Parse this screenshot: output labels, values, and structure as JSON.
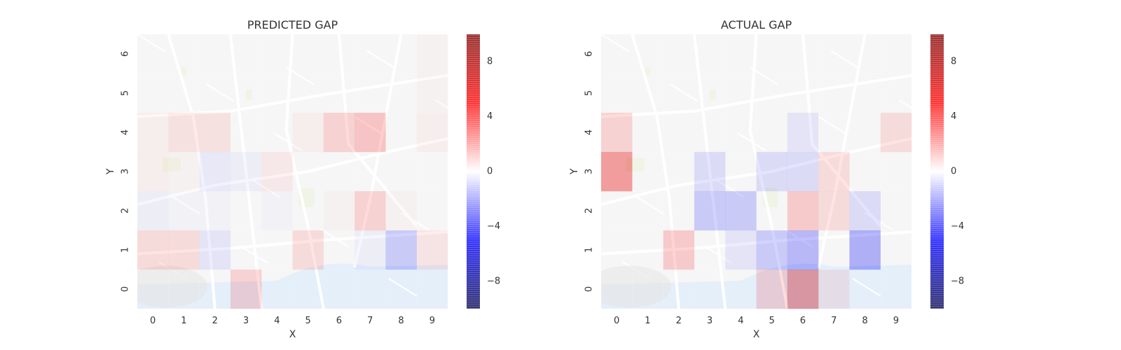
{
  "chart_data": [
    {
      "type": "heatmap",
      "title": "PREDICTED GAP",
      "xlabel": "X",
      "ylabel": "Y",
      "x_ticks": [
        "0",
        "1",
        "2",
        "3",
        "4",
        "5",
        "6",
        "7",
        "8",
        "9"
      ],
      "y_ticks": [
        "0",
        "1",
        "2",
        "3",
        "4",
        "5",
        "6"
      ],
      "colorbar": {
        "colormap": "seismic",
        "range": [
          -10,
          10
        ],
        "ticks": [
          -8,
          -4,
          0,
          4,
          8
        ],
        "tick_labels": [
          "−8",
          "−4",
          "0",
          "4",
          "8"
        ]
      },
      "background": "map",
      "grid": false,
      "values": [
        [
          0.0,
          0.0,
          0.0,
          2.0,
          0.0,
          0.0,
          0.0,
          0.0,
          0.0,
          0.0
        ],
        [
          1.5,
          1.5,
          -1.0,
          0.0,
          0.0,
          1.5,
          0.0,
          -0.5,
          -2.5,
          1.0
        ],
        [
          -0.5,
          -0.3,
          -0.3,
          0.0,
          -0.3,
          0.0,
          0.3,
          2.0,
          0.3,
          0.0
        ],
        [
          0.5,
          0.3,
          -0.8,
          -0.5,
          0.8,
          0.0,
          0.0,
          0.0,
          0.0,
          0.0
        ],
        [
          0.5,
          1.2,
          1.2,
          0.0,
          0.0,
          0.5,
          2.0,
          2.8,
          0.0,
          0.5
        ],
        [
          0.0,
          0.0,
          0.0,
          0.0,
          0.0,
          0.0,
          0.0,
          0.0,
          0.0,
          0.3
        ],
        [
          0.0,
          0.0,
          0.0,
          0.0,
          0.0,
          0.0,
          0.0,
          0.0,
          0.0,
          0.3
        ]
      ]
    },
    {
      "type": "heatmap",
      "title": "ACTUAL GAP",
      "xlabel": "X",
      "ylabel": "Y",
      "x_ticks": [
        "0",
        "1",
        "2",
        "3",
        "4",
        "5",
        "6",
        "7",
        "8",
        "9"
      ],
      "y_ticks": [
        "0",
        "1",
        "2",
        "3",
        "4",
        "5",
        "6"
      ],
      "colorbar": {
        "colormap": "seismic",
        "range": [
          -10,
          10
        ],
        "ticks": [
          -8,
          -4,
          0,
          4,
          8
        ],
        "tick_labels": [
          "−8",
          "−4",
          "0",
          "4",
          "8"
        ]
      },
      "background": "map",
      "grid": false,
      "values": [
        [
          0.0,
          0.0,
          0.0,
          0.0,
          0.0,
          2.0,
          6.5,
          1.0,
          0.0,
          0.0
        ],
        [
          0.0,
          0.0,
          2.5,
          0.0,
          -1.0,
          -2.5,
          -3.5,
          0.0,
          -4.0,
          0.0
        ],
        [
          0.0,
          0.0,
          0.0,
          -2.5,
          -2.5,
          0.0,
          2.5,
          1.5,
          -1.5,
          0.0
        ],
        [
          5.5,
          0.0,
          0.0,
          -1.5,
          0.0,
          -1.5,
          -1.5,
          1.5,
          0.0,
          0.0
        ],
        [
          2.0,
          0.0,
          0.0,
          0.0,
          0.0,
          0.0,
          -1.0,
          0.0,
          0.0,
          1.5
        ],
        [
          0.0,
          0.0,
          0.0,
          0.0,
          0.0,
          0.0,
          0.0,
          0.0,
          0.0,
          0.0
        ],
        [
          0.0,
          0.0,
          0.0,
          0.0,
          0.0,
          0.0,
          0.0,
          0.0,
          0.0,
          0.0
        ]
      ]
    }
  ]
}
